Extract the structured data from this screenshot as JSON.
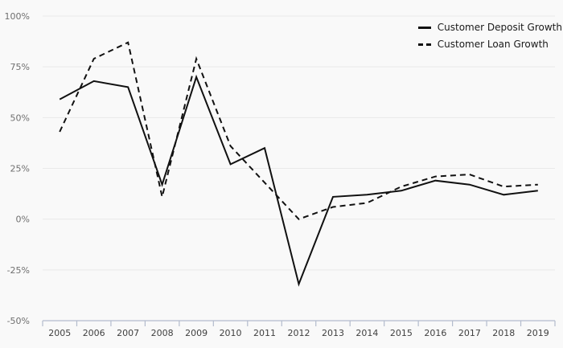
{
  "colors": {
    "background": "#f9f9f9",
    "grid": "#e9e9e9",
    "axis": "#b3bccd",
    "tick": "#b3bccd",
    "line": "#111111",
    "y_label": "#6f6f6f",
    "x_label": "#3f3f3f",
    "legend_text": "#1a1a1a"
  },
  "chart_data": {
    "type": "line",
    "title": "",
    "xlabel": "",
    "ylabel": "",
    "x": [
      "2005",
      "2006",
      "2007",
      "2008",
      "2009",
      "2010",
      "2011",
      "2012",
      "2013",
      "2014",
      "2015",
      "2016",
      "2017",
      "2018",
      "2019"
    ],
    "series": [
      {
        "name": "Customer Deposit Growth",
        "style": "solid",
        "values": [
          59,
          68,
          65,
          17,
          70,
          27,
          35,
          -32,
          11,
          12,
          14,
          19,
          17,
          12,
          14
        ]
      },
      {
        "name": "Customer Loan Growth",
        "style": "dashed",
        "values": [
          43,
          79,
          87,
          11,
          79,
          36,
          18,
          0,
          6,
          8,
          16,
          21,
          22,
          16,
          17
        ]
      }
    ],
    "ylim": [
      -50,
      100
    ],
    "yticks": [
      -50,
      -25,
      0,
      25,
      50,
      75,
      100
    ],
    "ytick_labels": [
      "-50%",
      "-25%",
      "0%",
      "25%",
      "50%",
      "75%",
      "100%"
    ],
    "grid": "horizontal",
    "legend_position": "top-right"
  }
}
